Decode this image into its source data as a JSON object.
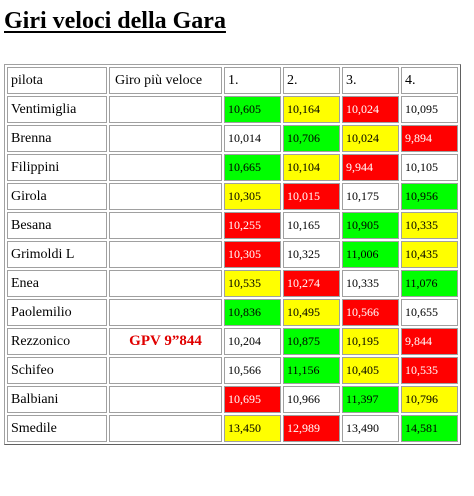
{
  "page": {
    "title": "Giri veloci della Gara"
  },
  "legend_colors": {
    "green": "#00ff00",
    "yellow": "#ffff00",
    "red": "#ff0000",
    "white": "#ffffff",
    "gpv_text": "#e00000"
  },
  "table": {
    "headers": {
      "pilot": "pilota",
      "fastest": "Giro più veloce",
      "laps": [
        "1.",
        "2.",
        "3.",
        "4."
      ]
    },
    "rows": [
      {
        "pilot": "Ventimiglia",
        "fastest": "",
        "laps": [
          {
            "value": "10,605",
            "color": "green"
          },
          {
            "value": "10,164",
            "color": "yellow"
          },
          {
            "value": "10,024",
            "color": "red"
          },
          {
            "value": "10,095",
            "color": "white"
          }
        ]
      },
      {
        "pilot": "Brenna",
        "fastest": "",
        "laps": [
          {
            "value": "10,014",
            "color": "white"
          },
          {
            "value": "10,706",
            "color": "green"
          },
          {
            "value": "10,024",
            "color": "yellow"
          },
          {
            "value": "9,894",
            "color": "red"
          }
        ]
      },
      {
        "pilot": "Filippini",
        "fastest": "",
        "laps": [
          {
            "value": "10,665",
            "color": "green"
          },
          {
            "value": "10,104",
            "color": "yellow"
          },
          {
            "value": "9,944",
            "color": "red"
          },
          {
            "value": "10,105",
            "color": "white"
          }
        ]
      },
      {
        "pilot": "Girola",
        "fastest": "",
        "laps": [
          {
            "value": "10,305",
            "color": "yellow"
          },
          {
            "value": "10,015",
            "color": "red"
          },
          {
            "value": "10,175",
            "color": "white"
          },
          {
            "value": "10,956",
            "color": "green"
          }
        ]
      },
      {
        "pilot": "Besana",
        "fastest": "",
        "laps": [
          {
            "value": "10,255",
            "color": "red"
          },
          {
            "value": "10,165",
            "color": "white"
          },
          {
            "value": "10,905",
            "color": "green"
          },
          {
            "value": "10,335",
            "color": "yellow"
          }
        ]
      },
      {
        "pilot": "Grimoldi L",
        "fastest": "",
        "laps": [
          {
            "value": "10,305",
            "color": "red"
          },
          {
            "value": "10,325",
            "color": "white"
          },
          {
            "value": "11,006",
            "color": "green"
          },
          {
            "value": "10,435",
            "color": "yellow"
          }
        ]
      },
      {
        "pilot": "Enea",
        "fastest": "",
        "laps": [
          {
            "value": "10,535",
            "color": "yellow"
          },
          {
            "value": "10,274",
            "color": "red"
          },
          {
            "value": "10,335",
            "color": "white"
          },
          {
            "value": "11,076",
            "color": "green"
          }
        ]
      },
      {
        "pilot": "Paolemilio",
        "fastest": "",
        "laps": [
          {
            "value": "10,836",
            "color": "green"
          },
          {
            "value": "10,495",
            "color": "yellow"
          },
          {
            "value": "10,566",
            "color": "red"
          },
          {
            "value": "10,655",
            "color": "white"
          }
        ]
      },
      {
        "pilot": "Rezzonico",
        "fastest": "GPV 9”844",
        "laps": [
          {
            "value": "10,204",
            "color": "white"
          },
          {
            "value": "10,875",
            "color": "green"
          },
          {
            "value": "10,195",
            "color": "yellow"
          },
          {
            "value": "9,844",
            "color": "red"
          }
        ]
      },
      {
        "pilot": "Schifeo",
        "fastest": "",
        "laps": [
          {
            "value": "10,566",
            "color": "white"
          },
          {
            "value": "11,156",
            "color": "green"
          },
          {
            "value": "10,405",
            "color": "yellow"
          },
          {
            "value": "10,535",
            "color": "red"
          }
        ]
      },
      {
        "pilot": "Balbiani",
        "fastest": "",
        "laps": [
          {
            "value": "10,695",
            "color": "red"
          },
          {
            "value": "10,966",
            "color": "white"
          },
          {
            "value": "11,397",
            "color": "green"
          },
          {
            "value": "10,796",
            "color": "yellow"
          }
        ]
      },
      {
        "pilot": "Smedile",
        "fastest": "",
        "laps": [
          {
            "value": "13,450",
            "color": "yellow"
          },
          {
            "value": "12,989",
            "color": "red"
          },
          {
            "value": "13,490",
            "color": "white"
          },
          {
            "value": "14,581",
            "color": "green"
          }
        ]
      }
    ]
  }
}
